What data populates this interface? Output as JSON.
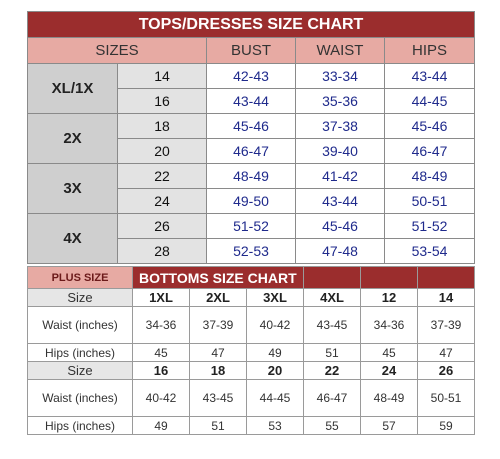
{
  "tops": {
    "title": "TOPS/DRESSES SIZE CHART",
    "headers": {
      "sizes": "SIZES",
      "bust": "BUST",
      "waist": "WAIST",
      "hips": "HIPS"
    },
    "groups": [
      {
        "label": "XL/1X",
        "rows": [
          {
            "size": "14",
            "bust": "42-43",
            "waist": "33-34",
            "hips": "43-44"
          },
          {
            "size": "16",
            "bust": "43-44",
            "waist": "35-36",
            "hips": "44-45"
          }
        ]
      },
      {
        "label": "2X",
        "rows": [
          {
            "size": "18",
            "bust": "45-46",
            "waist": "37-38",
            "hips": "45-46"
          },
          {
            "size": "20",
            "bust": "46-47",
            "waist": "39-40",
            "hips": "46-47"
          }
        ]
      },
      {
        "label": "3X",
        "rows": [
          {
            "size": "22",
            "bust": "48-49",
            "waist": "41-42",
            "hips": "48-49"
          },
          {
            "size": "24",
            "bust": "49-50",
            "waist": "43-44",
            "hips": "50-51"
          }
        ]
      },
      {
        "label": "4X",
        "rows": [
          {
            "size": "26",
            "bust": "51-52",
            "waist": "45-46",
            "hips": "51-52"
          },
          {
            "size": "28",
            "bust": "52-53",
            "waist": "47-48",
            "hips": "53-54"
          }
        ]
      }
    ]
  },
  "bottoms": {
    "plus_size": "PLUS SIZE",
    "title": "BOTTOMS SIZE CHART",
    "blocks": [
      {
        "size_label": "Size",
        "sizes": [
          "1XL",
          "2XL",
          "3XL",
          "4XL",
          "12",
          "14"
        ],
        "waist_label": "Waist (inches)",
        "waist": [
          "34-36",
          "37-39",
          "40-42",
          "43-45",
          "34-36",
          "37-39"
        ],
        "hips_label": "Hips (inches)",
        "hips": [
          "45",
          "47",
          "49",
          "51",
          "45",
          "47"
        ]
      },
      {
        "size_label": "Size",
        "sizes": [
          "16",
          "18",
          "20",
          "22",
          "24",
          "26"
        ],
        "waist_label": "Waist (inches)",
        "waist": [
          "40-42",
          "43-45",
          "44-45",
          "46-47",
          "48-49",
          "50-51"
        ],
        "hips_label": "Hips (inches)",
        "hips": [
          "49",
          "51",
          "53",
          "55",
          "57",
          "59"
        ]
      }
    ]
  },
  "colors": {
    "maroon": "#9b2d2d",
    "pink": "#e7aaa3",
    "value_blue": "#1f2a8c"
  }
}
